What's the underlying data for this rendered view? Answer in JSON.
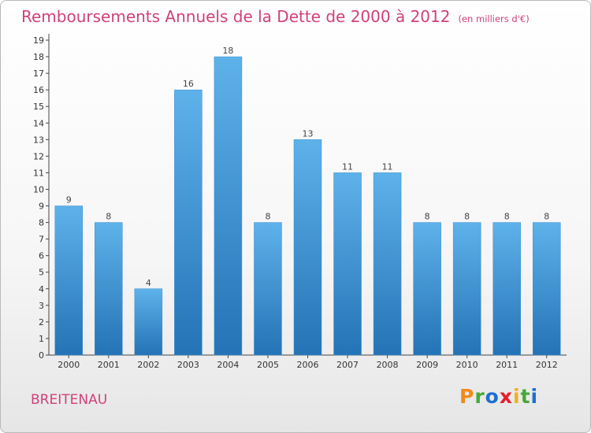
{
  "header": {
    "title": "Remboursements Annuels de la Dette de 2000 à 2012",
    "unit": "(en milliers d'€)"
  },
  "footer": {
    "commune": "BREITENAU",
    "brand_letters": [
      "P",
      "r",
      "o",
      "x",
      "i",
      "t",
      "i"
    ],
    "brand_colors": [
      "#f08a1c",
      "#46a83a",
      "#1e6fd0",
      "#e3202a",
      "#f0b21c",
      "#46a83a",
      "#1e6fd0"
    ]
  },
  "chart_data": {
    "type": "bar",
    "categories": [
      "2000",
      "2001",
      "2002",
      "2003",
      "2004",
      "2005",
      "2006",
      "2007",
      "2008",
      "2009",
      "2010",
      "2011",
      "2012"
    ],
    "values": [
      9,
      8,
      4,
      16,
      18,
      8,
      13,
      11,
      11,
      8,
      8,
      8,
      8
    ],
    "ylim": [
      0,
      19
    ],
    "yticks": [
      0,
      1,
      2,
      3,
      4,
      5,
      6,
      7,
      8,
      9,
      10,
      11,
      12,
      13,
      14,
      15,
      16,
      17,
      18,
      19
    ],
    "grid": false,
    "bar_color_top": "#5eb2ea",
    "bar_color_bottom": "#2473b6",
    "title_color": "#d0417a"
  }
}
